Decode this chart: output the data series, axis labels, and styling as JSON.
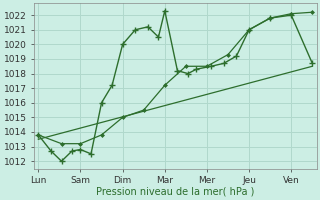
{
  "background_color": "#cceee4",
  "grid_color": "#b0d8cc",
  "line_color": "#2d6e2d",
  "xtick_labels": [
    "Lun",
    "Sam",
    "Dim",
    "Mar",
    "Mer",
    "Jeu",
    "Ven"
  ],
  "xlabel": "Pression niveau de la mer( hPa )",
  "ylim": [
    1011.5,
    1022.8
  ],
  "yticks": [
    1012,
    1013,
    1014,
    1015,
    1016,
    1017,
    1018,
    1019,
    1020,
    1021,
    1022
  ],
  "xtick_positions": [
    0,
    1,
    2,
    3,
    4,
    5,
    6
  ],
  "xlim": [
    -0.1,
    6.6
  ],
  "series1_x": [
    0,
    0.3,
    0.55,
    0.8,
    1.0,
    1.25,
    1.5,
    1.75,
    2.0,
    2.3,
    2.6,
    2.85,
    3.0,
    3.3,
    3.55,
    3.75,
    4.1,
    4.4,
    4.7,
    5.0,
    5.5,
    6.0,
    6.5
  ],
  "series1_y": [
    1013.8,
    1012.7,
    1012.0,
    1012.7,
    1012.8,
    1012.5,
    1016.0,
    1017.2,
    1020.0,
    1021.0,
    1021.2,
    1020.5,
    1022.3,
    1018.2,
    1018.0,
    1018.3,
    1018.5,
    1018.7,
    1019.2,
    1021.0,
    1021.8,
    1022.0,
    1018.7
  ],
  "series2_x": [
    0,
    0.55,
    1.0,
    1.5,
    2.0,
    2.5,
    3.0,
    3.5,
    4.0,
    4.5,
    5.0,
    5.5,
    6.0,
    6.5
  ],
  "series2_y": [
    1013.8,
    1013.2,
    1013.2,
    1013.8,
    1015.0,
    1015.5,
    1017.2,
    1018.5,
    1018.5,
    1019.3,
    1021.0,
    1021.8,
    1022.1,
    1022.2
  ],
  "series3_x": [
    0,
    6.5
  ],
  "series3_y": [
    1013.5,
    1018.5
  ]
}
